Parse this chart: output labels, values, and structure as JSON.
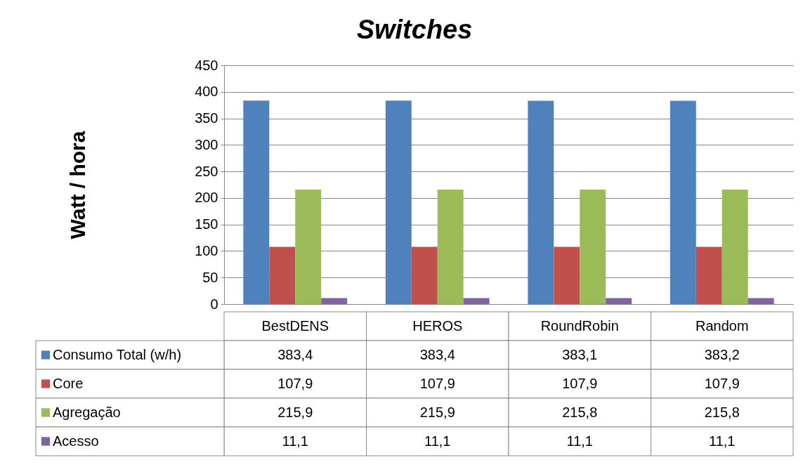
{
  "chart_data": {
    "type": "bar",
    "title": "Switches",
    "ylabel": "Watt / hora",
    "categories": [
      "BestDENS",
      "HEROS",
      "RoundRobin",
      "Random"
    ],
    "series": [
      {
        "name": "Consumo Total (w/h)",
        "color": "#4f81bd",
        "values": [
          383.4,
          383.4,
          383.1,
          383.2
        ],
        "value_labels": [
          "383,4",
          "383,4",
          "383,1",
          "383,2"
        ]
      },
      {
        "name": "Core",
        "color": "#c0504d",
        "values": [
          107.9,
          107.9,
          107.9,
          107.9
        ],
        "value_labels": [
          "107,9",
          "107,9",
          "107,9",
          "107,9"
        ]
      },
      {
        "name": "Agregação",
        "color": "#9bbb59",
        "values": [
          215.9,
          215.9,
          215.8,
          215.8
        ],
        "value_labels": [
          "215,9",
          "215,9",
          "215,8",
          "215,8"
        ]
      },
      {
        "name": "Acesso",
        "color": "#8064a2",
        "values": [
          11.1,
          11.1,
          11.1,
          11.1
        ],
        "value_labels": [
          "11,1",
          "11,1",
          "11,1",
          "11,1"
        ]
      }
    ],
    "ylim": [
      0,
      450
    ],
    "yticks": [
      0,
      50,
      100,
      150,
      200,
      250,
      300,
      350,
      400,
      450
    ],
    "grid": "y",
    "legend": "bottom left"
  }
}
